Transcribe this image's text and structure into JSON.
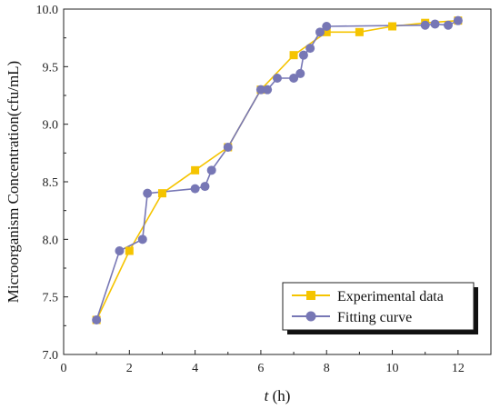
{
  "chart_data": {
    "type": "line",
    "xlabel_italic": "t",
    "xlabel_unit": " (h)",
    "ylabel": "Microorganism Concentration(cfu/mL)",
    "xlim": [
      0,
      13
    ],
    "ylim": [
      7.0,
      10.0
    ],
    "x_ticks": [
      0,
      2,
      4,
      6,
      8,
      10,
      12
    ],
    "y_ticks": [
      7.0,
      7.5,
      8.0,
      8.5,
      9.0,
      9.5,
      10.0
    ],
    "x_tick_labels": [
      "0",
      "2",
      "4",
      "6",
      "8",
      "10",
      "12"
    ],
    "y_tick_labels": [
      "7.0",
      "7.5",
      "8.0",
      "8.5",
      "9.0",
      "9.5",
      "10.0"
    ],
    "grid": false,
    "legend_position": "bottom-right",
    "series": [
      {
        "name": "Experimental data",
        "color": "#F5C400",
        "marker": "square",
        "x": [
          1,
          2,
          3,
          4,
          5,
          6,
          7,
          8,
          9,
          10,
          11,
          12
        ],
        "y": [
          7.3,
          7.9,
          8.4,
          8.6,
          8.8,
          9.3,
          9.6,
          9.8,
          9.8,
          9.85,
          9.88,
          9.9
        ]
      },
      {
        "name": "Fitting curve",
        "color": "#7777B5",
        "marker": "circle",
        "x": [
          1,
          1.7,
          2.4,
          2.55,
          4,
          4.3,
          4.5,
          5,
          6,
          6.2,
          6.5,
          7,
          7.2,
          7.3,
          7.5,
          7.8,
          8,
          11,
          11.3,
          11.7,
          12
        ],
        "y": [
          7.3,
          7.9,
          8.0,
          8.4,
          8.44,
          8.46,
          8.6,
          8.8,
          9.3,
          9.3,
          9.4,
          9.4,
          9.44,
          9.6,
          9.66,
          9.8,
          9.85,
          9.86,
          9.87,
          9.86,
          9.9
        ]
      }
    ]
  }
}
